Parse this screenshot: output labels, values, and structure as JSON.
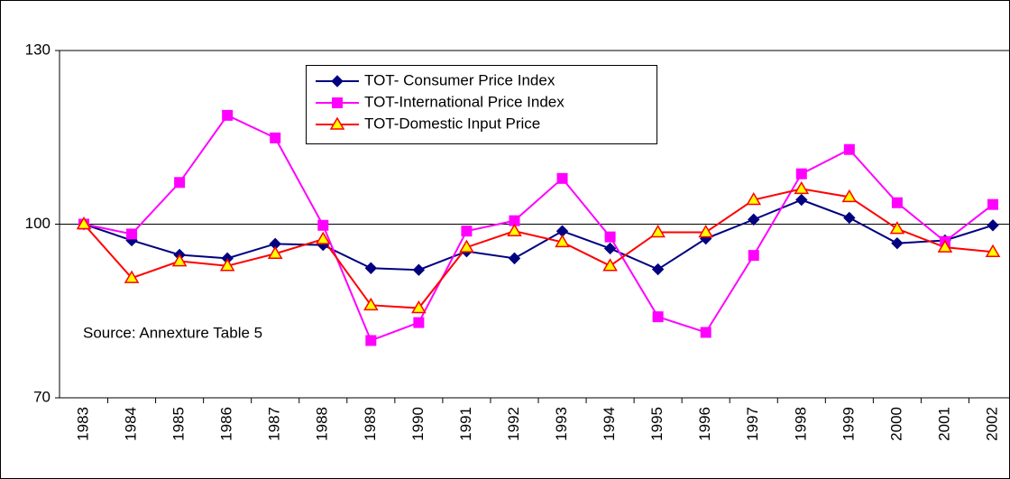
{
  "chart_data": {
    "type": "line",
    "categories": [
      "1983",
      "1984",
      "1985",
      "1986",
      "1987",
      "1988",
      "1989",
      "1990",
      "1991",
      "1992",
      "1993",
      "1994",
      "1995",
      "1996",
      "1997",
      "1998",
      "1999",
      "2000",
      "2001",
      "2002"
    ],
    "series": [
      {
        "name": "TOT- Consumer Price Index",
        "color": "#000080",
        "marker": "diamond",
        "values": [
          100,
          97.2,
          94.7,
          94.1,
          96.6,
          96.4,
          92.4,
          92.1,
          95.3,
          94.1,
          98.8,
          95.8,
          92.2,
          97.5,
          100.8,
          104.2,
          101.1,
          96.7,
          97.2,
          99.8
        ]
      },
      {
        "name": "TOT-International Price Index",
        "color": "#ff00ff",
        "marker": "square",
        "values": [
          100,
          98.3,
          107.2,
          118.8,
          114.9,
          99.8,
          79.9,
          83,
          98.8,
          100.6,
          107.9,
          97.8,
          84,
          81.3,
          94.6,
          108.7,
          112.9,
          103.7,
          97,
          103.4
        ]
      },
      {
        "name": "TOT-Domestic Input Price",
        "color": "#ff0000",
        "marker": "triangle",
        "values": [
          100,
          90.7,
          93.6,
          92.8,
          94.9,
          97.4,
          86,
          85.5,
          96,
          98.8,
          96.9,
          92.8,
          98.6,
          98.6,
          104.2,
          106.1,
          104.7,
          99.2,
          96,
          95.2
        ]
      }
    ],
    "annotation": "Source: Annexture Table 5",
    "ylim": [
      70,
      130
    ],
    "yticks": [
      70,
      100,
      130
    ],
    "grid": true,
    "legend": "top"
  }
}
